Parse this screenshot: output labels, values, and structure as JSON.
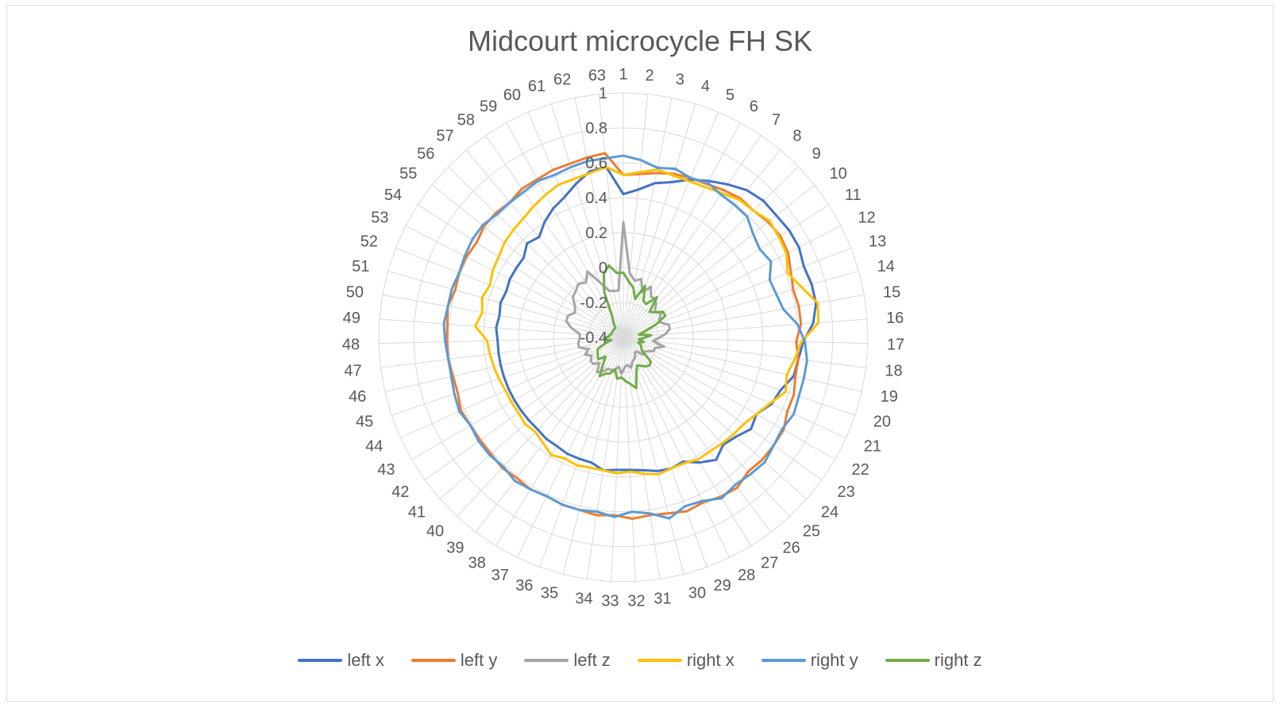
{
  "chart_data": {
    "type": "radar",
    "title": "Midcourt microcycle FH SK",
    "categories": [
      "1",
      "2",
      "3",
      "4",
      "5",
      "6",
      "7",
      "8",
      "9",
      "10",
      "11",
      "12",
      "13",
      "14",
      "15",
      "16",
      "17",
      "18",
      "19",
      "20",
      "21",
      "22",
      "23",
      "24",
      "25",
      "26",
      "27",
      "28",
      "29",
      "30",
      "31",
      "32",
      "33",
      "34",
      "35",
      "36",
      "37",
      "38",
      "39",
      "40",
      "41",
      "42",
      "43",
      "44",
      "45",
      "46",
      "47",
      "48",
      "49",
      "50",
      "51",
      "52",
      "53",
      "54",
      "55",
      "56",
      "57",
      "58",
      "59",
      "60",
      "61",
      "62",
      "63"
    ],
    "rlim": [
      -0.4,
      1
    ],
    "ticks": [
      "-0.4",
      "-0.2",
      "0",
      "0.2",
      "0.4",
      "0.6",
      "0.8",
      "1"
    ],
    "grid": true,
    "legend_position": "bottom",
    "series": [
      {
        "name": "left x",
        "color": "#4472c4",
        "values": [
          0.42,
          0.45,
          0.5,
          0.53,
          0.58,
          0.62,
          0.66,
          0.7,
          0.72,
          0.72,
          0.73,
          0.73,
          0.71,
          0.72,
          0.72,
          0.69,
          0.63,
          0.61,
          0.6,
          0.55,
          0.53,
          0.48,
          0.5,
          0.46,
          0.44,
          0.48,
          0.44,
          0.39,
          0.4,
          0.39,
          0.37,
          0.36,
          0.36,
          0.37,
          0.34,
          0.34,
          0.34,
          0.33,
          0.33,
          0.32,
          0.32,
          0.32,
          0.32,
          0.32,
          0.32,
          0.32,
          0.32,
          0.32,
          0.33,
          0.32,
          0.33,
          0.32,
          0.33,
          0.33,
          0.33,
          0.37,
          0.35,
          0.4,
          0.44,
          0.47,
          0.52,
          0.57,
          0.58
        ]
      },
      {
        "name": "left y",
        "color": "#ed7d31",
        "values": [
          0.53,
          0.54,
          0.56,
          0.58,
          0.59,
          0.6,
          0.62,
          0.64,
          0.64,
          0.66,
          0.67,
          0.66,
          0.63,
          0.61,
          0.62,
          0.62,
          0.59,
          0.61,
          0.61,
          0.63,
          0.63,
          0.66,
          0.66,
          0.66,
          0.65,
          0.68,
          0.67,
          0.65,
          0.66,
          0.64,
          0.63,
          0.64,
          0.62,
          0.63,
          0.62,
          0.62,
          0.61,
          0.62,
          0.61,
          0.62,
          0.61,
          0.61,
          0.61,
          0.62,
          0.6,
          0.6,
          0.61,
          0.61,
          0.61,
          0.62,
          0.6,
          0.61,
          0.61,
          0.6,
          0.62,
          0.62,
          0.61,
          0.63,
          0.63,
          0.64,
          0.64,
          0.65,
          0.66
        ]
      },
      {
        "name": "left z",
        "color": "#a5a5a5",
        "values": [
          0.26,
          -0.03,
          -0.07,
          -0.05,
          -0.12,
          -0.07,
          -0.12,
          -0.11,
          -0.14,
          -0.17,
          -0.14,
          -0.17,
          -0.17,
          -0.13,
          -0.13,
          -0.16,
          -0.2,
          -0.23,
          -0.16,
          -0.21,
          -0.21,
          -0.24,
          -0.26,
          -0.25,
          -0.29,
          -0.29,
          -0.27,
          -0.26,
          -0.25,
          -0.22,
          -0.24,
          -0.23,
          -0.19,
          -0.23,
          -0.21,
          -0.2,
          -0.2,
          -0.17,
          -0.15,
          -0.2,
          -0.17,
          -0.17,
          -0.19,
          -0.16,
          -0.19,
          -0.14,
          -0.14,
          -0.15,
          -0.15,
          -0.1,
          -0.06,
          -0.06,
          -0.09,
          -0.07,
          -0.03,
          -0.02,
          0.0,
          -0.02,
          0.03,
          -0.06,
          -0.12,
          -0.13,
          -0.13
        ]
      },
      {
        "name": "right x",
        "color": "#ffc000",
        "values": [
          0.53,
          0.55,
          0.58,
          0.57,
          0.57,
          0.58,
          0.6,
          0.63,
          0.64,
          0.67,
          0.66,
          0.65,
          0.61,
          0.66,
          0.73,
          0.72,
          0.62,
          0.59,
          0.56,
          0.58,
          0.52,
          0.48,
          0.45,
          0.44,
          0.43,
          0.42,
          0.42,
          0.4,
          0.4,
          0.41,
          0.39,
          0.37,
          0.38,
          0.37,
          0.37,
          0.38,
          0.37,
          0.39,
          0.36,
          0.34,
          0.35,
          0.34,
          0.34,
          0.34,
          0.35,
          0.36,
          0.37,
          0.38,
          0.45,
          0.42,
          0.44,
          0.42,
          0.44,
          0.45,
          0.47,
          0.48,
          0.49,
          0.51,
          0.53,
          0.55,
          0.55,
          0.56,
          0.58
        ]
      },
      {
        "name": "right y",
        "color": "#5b9bd5",
        "values": [
          0.64,
          0.62,
          0.59,
          0.61,
          0.59,
          0.61,
          0.59,
          0.59,
          0.59,
          0.55,
          0.53,
          0.55,
          0.5,
          0.51,
          0.53,
          0.6,
          0.64,
          0.66,
          0.66,
          0.66,
          0.67,
          0.65,
          0.66,
          0.68,
          0.67,
          0.66,
          0.68,
          0.64,
          0.63,
          0.67,
          0.62,
          0.6,
          0.63,
          0.61,
          0.62,
          0.62,
          0.61,
          0.62,
          0.63,
          0.61,
          0.62,
          0.62,
          0.61,
          0.63,
          0.62,
          0.61,
          0.61,
          0.62,
          0.63,
          0.62,
          0.62,
          0.61,
          0.62,
          0.63,
          0.63,
          0.61,
          0.61,
          0.61,
          0.62,
          0.61,
          0.62,
          0.63,
          0.63
        ]
      },
      {
        "name": "right z",
        "color": "#70ad47",
        "values": [
          -0.03,
          -0.08,
          -0.11,
          -0.17,
          -0.08,
          -0.16,
          -0.17,
          -0.1,
          -0.19,
          -0.17,
          -0.13,
          -0.13,
          -0.2,
          -0.27,
          -0.31,
          -0.24,
          -0.28,
          -0.31,
          -0.28,
          -0.31,
          -0.29,
          -0.28,
          -0.27,
          -0.19,
          -0.18,
          -0.19,
          -0.21,
          -0.22,
          -0.18,
          -0.1,
          -0.13,
          -0.15,
          -0.17,
          -0.16,
          -0.21,
          -0.18,
          -0.17,
          -0.14,
          -0.21,
          -0.25,
          -0.21,
          -0.22,
          -0.23,
          -0.24,
          -0.29,
          -0.33,
          -0.3,
          -0.29,
          -0.32,
          -0.32,
          -0.33,
          -0.33,
          -0.33,
          -0.33,
          -0.33,
          -0.33,
          -0.33,
          -0.3,
          -0.27,
          -0.12,
          -0.02,
          0.02,
          -0.03
        ]
      }
    ]
  }
}
